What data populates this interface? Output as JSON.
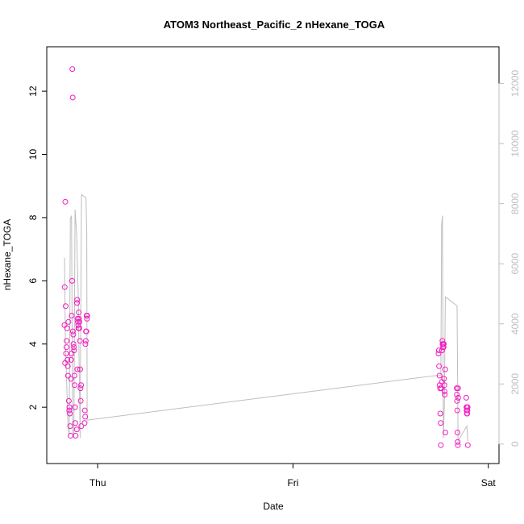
{
  "chart_data": {
    "type": "scatter",
    "title": "ATOM3 Northeast_Pacific_2 nHexane_TOGA",
    "xlabel": "Date",
    "ylabel": "nHexane_TOGA",
    "x_unit": "days",
    "xlim": [
      -0.17,
      2.03
    ],
    "ylim": [
      0.55,
      13.1
    ],
    "y2lim": [
      -300,
      12900
    ],
    "x_ticks": [
      {
        "value": 0,
        "label": "Thu"
      },
      {
        "value": 1,
        "label": "Fri"
      },
      {
        "value": 2,
        "label": "Sat"
      }
    ],
    "y_ticks": [
      2,
      4,
      6,
      8,
      10,
      12
    ],
    "y2_ticks": [
      0,
      2000,
      4000,
      6000,
      8000,
      10000,
      12000
    ],
    "grid": false,
    "legend": "none",
    "colors": {
      "points": "#f21cc0",
      "altitude_line": "#bebebe",
      "right_axis": "#bebebe"
    },
    "series": [
      {
        "marker": "open-circle",
        "axis": "left",
        "points": [
          [
            -0.17,
            4.6
          ],
          [
            -0.169,
            5.8
          ],
          [
            -0.167,
            3.4
          ],
          [
            -0.166,
            8.5
          ],
          [
            -0.164,
            5.2
          ],
          [
            -0.162,
            3.7
          ],
          [
            -0.16,
            3.9
          ],
          [
            -0.159,
            4.1
          ],
          [
            -0.157,
            4.5
          ],
          [
            -0.155,
            3.5
          ],
          [
            -0.153,
            3.3
          ],
          [
            -0.152,
            3.0
          ],
          [
            -0.15,
            4.7
          ],
          [
            -0.148,
            2.2
          ],
          [
            -0.146,
            1.9
          ],
          [
            -0.145,
            2.0
          ],
          [
            -0.143,
            1.8
          ],
          [
            -0.141,
            1.4
          ],
          [
            -0.139,
            1.1
          ],
          [
            -0.137,
            2.9
          ],
          [
            -0.136,
            3.5
          ],
          [
            -0.134,
            3.7
          ],
          [
            -0.133,
            4.9
          ],
          [
            -0.131,
            6.0
          ],
          [
            -0.13,
            12.7
          ],
          [
            -0.128,
            11.8
          ],
          [
            -0.127,
            4.4
          ],
          [
            -0.125,
            4.3
          ],
          [
            -0.124,
            4.0
          ],
          [
            -0.122,
            3.9
          ],
          [
            -0.121,
            3.8
          ],
          [
            -0.119,
            3.0
          ],
          [
            -0.118,
            2.7
          ],
          [
            -0.116,
            2.0
          ],
          [
            -0.115,
            1.5
          ],
          [
            -0.113,
            1.1
          ],
          [
            -0.106,
            5.3
          ],
          [
            -0.105,
            5.4
          ],
          [
            -0.103,
            4.8
          ],
          [
            -0.102,
            4.7
          ],
          [
            -0.1,
            4.6
          ],
          [
            -0.099,
            4.5
          ],
          [
            -0.097,
            5.0
          ],
          [
            -0.096,
            4.8
          ],
          [
            -0.094,
            4.5
          ],
          [
            -0.093,
            4.7
          ],
          [
            -0.091,
            4.1
          ],
          [
            -0.09,
            3.2
          ],
          [
            -0.088,
            2.6
          ],
          [
            -0.087,
            2.2
          ],
          [
            -0.085,
            2.7
          ],
          [
            -0.084,
            1.4
          ],
          [
            -0.104,
            3.2
          ],
          [
            -0.107,
            1.3
          ],
          [
            -0.067,
            1.5
          ],
          [
            -0.066,
            1.9
          ],
          [
            -0.064,
            1.7
          ],
          [
            -0.063,
            4.0
          ],
          [
            -0.061,
            4.1
          ],
          [
            -0.06,
            4.4
          ],
          [
            -0.058,
            4.4
          ],
          [
            -0.057,
            4.9
          ],
          [
            -0.055,
            4.8
          ],
          [
            -0.054,
            4.9
          ],
          [
            1.745,
            3.7
          ],
          [
            1.747,
            3.8
          ],
          [
            1.748,
            3.3
          ],
          [
            1.75,
            3.0
          ],
          [
            1.751,
            2.7
          ],
          [
            1.753,
            2.6
          ],
          [
            1.754,
            1.8
          ],
          [
            1.756,
            1.5
          ],
          [
            1.757,
            0.8
          ],
          [
            1.76,
            2.6
          ],
          [
            1.762,
            2.8
          ],
          [
            1.763,
            3.8
          ],
          [
            1.765,
            4.1
          ],
          [
            1.766,
            4.0
          ],
          [
            1.768,
            3.9
          ],
          [
            1.769,
            4.0
          ],
          [
            1.771,
            3.9
          ],
          [
            1.772,
            4.0
          ],
          [
            1.773,
            2.9
          ],
          [
            1.775,
            2.7
          ],
          [
            1.776,
            2.5
          ],
          [
            1.777,
            2.4
          ],
          [
            1.779,
            3.2
          ],
          [
            1.78,
            1.2
          ],
          [
            1.838,
            2.6
          ],
          [
            1.839,
            2.4
          ],
          [
            1.84,
            2.2
          ],
          [
            1.841,
            1.9
          ],
          [
            1.842,
            1.2
          ],
          [
            1.843,
            0.9
          ],
          [
            1.844,
            0.8
          ],
          [
            1.845,
            2.6
          ],
          [
            1.846,
            2.3
          ],
          [
            1.887,
            2.3
          ],
          [
            1.888,
            2.0
          ],
          [
            1.889,
            1.9
          ],
          [
            1.89,
            1.8
          ],
          [
            1.891,
            2.0
          ],
          [
            1.892,
            1.8
          ],
          [
            1.893,
            1.9
          ],
          [
            1.894,
            2.0
          ],
          [
            1.895,
            0.8
          ]
        ]
      },
      {
        "type": "line",
        "axis": "right",
        "points": [
          [
            -0.17,
            6200
          ],
          [
            -0.165,
            3200
          ],
          [
            -0.16,
            2300
          ],
          [
            -0.152,
            600
          ],
          [
            -0.146,
            300
          ],
          [
            -0.14,
            7500
          ],
          [
            -0.134,
            7600
          ],
          [
            -0.128,
            400
          ],
          [
            -0.122,
            250
          ],
          [
            -0.116,
            7800
          ],
          [
            -0.108,
            7000
          ],
          [
            -0.1,
            5000
          ],
          [
            -0.094,
            2200
          ],
          [
            -0.09,
            200
          ],
          [
            -0.083,
            8300
          ],
          [
            -0.06,
            8200
          ],
          [
            -0.056,
            7000
          ],
          [
            -0.054,
            800
          ],
          [
            -0.05,
            800
          ],
          [
            1.757,
            2300
          ],
          [
            1.761,
            7300
          ],
          [
            1.765,
            7600
          ],
          [
            1.77,
            200
          ],
          [
            1.775,
            1300
          ],
          [
            1.78,
            4900
          ],
          [
            1.84,
            4600
          ],
          [
            1.845,
            100
          ],
          [
            1.89,
            600
          ],
          [
            1.895,
            100
          ]
        ]
      }
    ]
  }
}
